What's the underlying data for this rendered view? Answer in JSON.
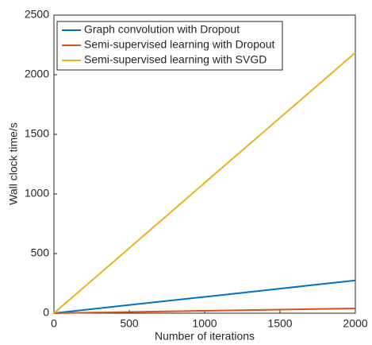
{
  "chart_data": {
    "type": "line",
    "x_label": "Number of iterations",
    "y_label": "Wall clock time/s",
    "x": [
      0,
      500,
      1000,
      1500,
      2000
    ],
    "series": [
      {
        "name": "Graph convolution with Dropout",
        "color": "#0072bd",
        "values": [
          0,
          69,
          137,
          206,
          275
        ]
      },
      {
        "name": "Semi-supervised learning with Dropout",
        "color": "#d95319",
        "values": [
          0,
          10,
          20,
          30,
          40
        ]
      },
      {
        "name": "Semi-supervised learning with SVGD",
        "color": "#edb120",
        "values": [
          0,
          546,
          1093,
          1639,
          2185
        ]
      }
    ],
    "xlim": [
      0,
      2000
    ],
    "xticks": [
      0,
      500,
      1000,
      1500,
      2000
    ],
    "ylim": [
      0,
      2500
    ],
    "yticks": [
      0,
      500,
      1000,
      1500,
      2000,
      2500
    ],
    "grid": false,
    "legend": "upper-left"
  }
}
